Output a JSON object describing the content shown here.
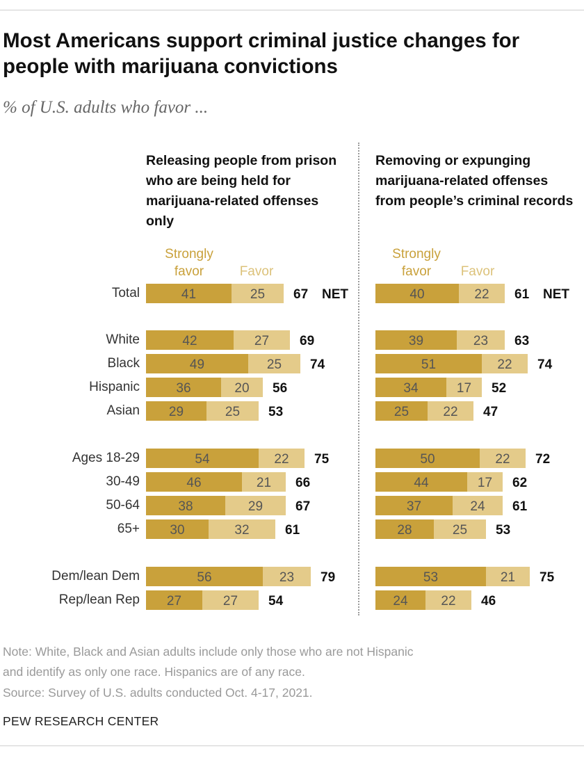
{
  "title": "Most Americans support criminal justice changes for people with marijuana convictions",
  "subtitle": "% of U.S. adults who favor ...",
  "colors": {
    "strongly_favor": "#c9a13b",
    "favor": "#e4cb8a"
  },
  "legend": {
    "strongly_favor": "Strongly favor",
    "favor": "Favor"
  },
  "net_label": "NET",
  "chart_data": {
    "type": "bar",
    "stacked": true,
    "orientation": "horizontal",
    "categories": [
      "Total",
      "White",
      "Black",
      "Hispanic",
      "Asian",
      "Ages 18-29",
      "30-49",
      "50-64",
      "65+",
      "Dem/lean Dem",
      "Rep/lean Rep"
    ],
    "panels": [
      {
        "title": "Releasing people from prison who are being held for marijuana-related offenses only",
        "series": [
          {
            "name": "Strongly favor",
            "values": [
              41,
              42,
              49,
              36,
              29,
              54,
              46,
              38,
              30,
              56,
              27
            ]
          },
          {
            "name": "Favor",
            "values": [
              25,
              27,
              25,
              20,
              25,
              22,
              21,
              29,
              32,
              23,
              27
            ]
          }
        ],
        "totals": [
          67,
          69,
          74,
          56,
          53,
          75,
          66,
          67,
          61,
          79,
          54
        ]
      },
      {
        "title": "Removing or expunging marijuana-related offenses from people’s criminal records",
        "series": [
          {
            "name": "Strongly favor",
            "values": [
              40,
              39,
              51,
              34,
              25,
              50,
              44,
              37,
              28,
              53,
              24
            ]
          },
          {
            "name": "Favor",
            "values": [
              22,
              23,
              22,
              17,
              22,
              22,
              17,
              24,
              25,
              21,
              22
            ]
          }
        ],
        "totals": [
          61,
          63,
          74,
          52,
          47,
          72,
          62,
          61,
          53,
          75,
          46
        ]
      }
    ]
  },
  "footer": {
    "note_line1": "Note: White, Black and Asian adults include only those who are not Hispanic",
    "note_line2": "and identify as only one race. Hispanics are of any race.",
    "source": "Source: Survey of U.S. adults conducted Oct. 4-17, 2021."
  },
  "brand": "PEW RESEARCH CENTER"
}
